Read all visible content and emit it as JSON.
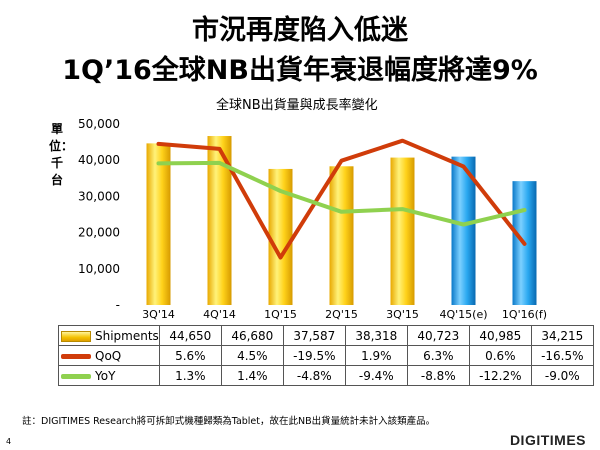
{
  "header": {
    "title_line1": "市況再度陷入低迷",
    "title_line2": "1Q’16全球NB出貨年衰退幅度將達9%"
  },
  "chart_data": {
    "type": "bar",
    "title": "全球NB出貨量與成長率變化",
    "ylabel": "單位：千台",
    "ylim": [
      0,
      50000
    ],
    "yticks": [
      "50,000",
      "40,000",
      "30,000",
      "20,000",
      "10,000",
      "-"
    ],
    "categories": [
      "3Q'14",
      "4Q'14",
      "1Q'15",
      "2Q'15",
      "3Q'15",
      "4Q'15(e)",
      "1Q'16(f)"
    ],
    "series": [
      {
        "name": "Shipments",
        "values": [
          44650,
          46680,
          37587,
          38318,
          40723,
          40985,
          34215
        ],
        "labels": [
          "44,650",
          "46,680",
          "37,587",
          "38,318",
          "40,723",
          "40,985",
          "34,215"
        ],
        "color": "#f4c100",
        "forecast_color": "#1a9ce6"
      },
      {
        "name": "QoQ",
        "values": [
          5.6,
          4.5,
          -19.5,
          1.9,
          6.3,
          0.6,
          -16.5
        ],
        "labels": [
          "5.6%",
          "4.5%",
          "-19.5%",
          "1.9%",
          "6.3%",
          "0.6%",
          "-16.5%"
        ],
        "color": "#d03c0a"
      },
      {
        "name": "YoY",
        "values": [
          1.3,
          1.4,
          -4.8,
          -9.4,
          -8.8,
          -12.2,
          -9.0
        ],
        "labels": [
          "1.3%",
          "1.4%",
          "-4.8%",
          "-9.4%",
          "-8.8%",
          "-12.2%",
          "-9.0%"
        ],
        "color": "#8fd14f"
      }
    ],
    "forecast_categories": [
      "4Q'15(e)",
      "1Q'16(f)"
    ],
    "grid": false,
    "legend": "table-below"
  },
  "note": "註：DIGITIMES Research將可拆卸式機種歸類為Tablet，故在此NB出貨量統計未計入該類產品。",
  "page_number": "4",
  "logo": "DIGITIMES"
}
